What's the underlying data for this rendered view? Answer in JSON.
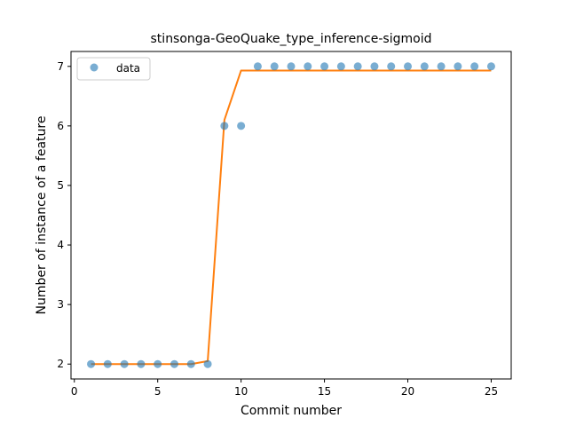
{
  "chart_data": {
    "type": "scatter",
    "title": "stinsonga-GeoQuake_type_inference-sigmoid",
    "xlabel": "Commit number",
    "ylabel": "Number of instance of a feature",
    "xlim": [
      -0.2,
      26.2
    ],
    "ylim": [
      1.75,
      7.25
    ],
    "xticks": [
      0,
      5,
      10,
      15,
      20,
      25
    ],
    "yticks": [
      2,
      3,
      4,
      5,
      6,
      7
    ],
    "grid": false,
    "legend_position": "top-left",
    "series": [
      {
        "name": "data",
        "kind": "scatter",
        "color": "#1f77b4",
        "x": [
          1,
          2,
          3,
          4,
          5,
          6,
          7,
          8,
          9,
          10,
          11,
          12,
          13,
          14,
          15,
          16,
          17,
          18,
          19,
          20,
          21,
          22,
          23,
          24,
          25
        ],
        "y": [
          2,
          2,
          2,
          2,
          2,
          2,
          2,
          2,
          6,
          6,
          7,
          7,
          7,
          7,
          7,
          7,
          7,
          7,
          7,
          7,
          7,
          7,
          7,
          7,
          7
        ]
      },
      {
        "kind": "line",
        "color": "#ff7f0e",
        "x": [
          1,
          2,
          3,
          4,
          5,
          6,
          7,
          8,
          9,
          10,
          11,
          12,
          13,
          14,
          15,
          16,
          17,
          18,
          19,
          20,
          21,
          22,
          23,
          24,
          25
        ],
        "y": [
          2,
          2,
          2,
          2,
          2,
          2,
          2,
          2.05,
          6.1,
          6.93,
          6.93,
          6.93,
          6.93,
          6.93,
          6.93,
          6.93,
          6.93,
          6.93,
          6.93,
          6.93,
          6.93,
          6.93,
          6.93,
          6.93,
          6.93
        ]
      }
    ]
  }
}
